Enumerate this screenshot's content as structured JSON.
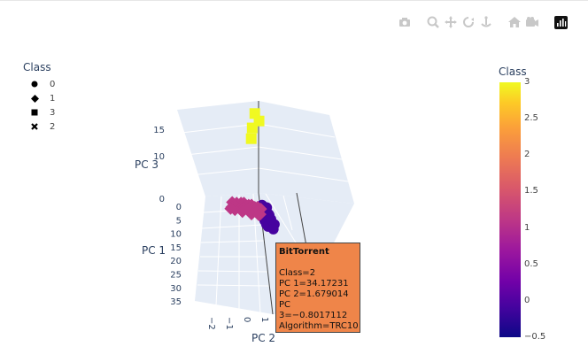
{
  "modebar": {
    "icons": [
      "camera-icon",
      "zoom-icon",
      "pan-icon",
      "orbit-icon",
      "turntable-icon",
      "home-icon",
      "camera-default-icon",
      "plotly-logo-icon"
    ]
  },
  "legend": {
    "title": "Class",
    "items": [
      {
        "label": "0",
        "symbol": "circle"
      },
      {
        "label": "1",
        "symbol": "diamond"
      },
      {
        "label": "3",
        "symbol": "square"
      },
      {
        "label": "2",
        "symbol": "x"
      }
    ]
  },
  "colorbar": {
    "title": "Class",
    "ticks": [
      "3",
      "2.5",
      "2",
      "1.5",
      "1",
      "0.5",
      "0",
      "−0.5"
    ],
    "colors": [
      "#0d0887",
      "#46039f",
      "#7201a8",
      "#9c179e",
      "#bd3786",
      "#d8576b",
      "#ed7953",
      "#fb9f3a",
      "#fdca26",
      "#f0f921"
    ]
  },
  "scene": {
    "axis_titles": {
      "x": "PC 1",
      "y": "PC 2",
      "z": "PC 3"
    },
    "x_ticks": [
      "0",
      "5",
      "10",
      "15",
      "20",
      "25",
      "30",
      "35"
    ],
    "y_ticks": [
      "−2",
      "−1",
      "0",
      "1"
    ],
    "z_ticks": [
      "0",
      "10",
      "15"
    ],
    "grid_color": "#ffffff",
    "plane_color": "#e5ecf6"
  },
  "chart_data": {
    "type": "scatter",
    "title": "",
    "xlabel": "PC 1",
    "ylabel": "PC 2",
    "zlabel": "PC 3",
    "color_range": [
      -0.5,
      3
    ],
    "series": [
      {
        "name": "0",
        "symbol": "circle",
        "color_value": 0,
        "points": [
          [
            2,
            0.2,
            0.1
          ],
          [
            3,
            0.5,
            0.2
          ],
          [
            4,
            0.4,
            0.3
          ],
          [
            5,
            0.3,
            0.1
          ],
          [
            6,
            0.6,
            0.5
          ],
          [
            7,
            0.2,
            0.4
          ],
          [
            8,
            0.5,
            0.6
          ],
          [
            9,
            0.3,
            0.8
          ],
          [
            10,
            0.6,
            1.0
          ],
          [
            11,
            0.4,
            1.2
          ],
          [
            12,
            0.5,
            1.3
          ],
          [
            3,
            0.2,
            -0.2
          ],
          [
            5,
            0.6,
            -0.3
          ],
          [
            7,
            0.7,
            0.0
          ],
          [
            9,
            0.9,
            0.1
          ],
          [
            11,
            0.8,
            0.2
          ]
        ]
      },
      {
        "name": "1",
        "symbol": "diamond",
        "color_value": 1,
        "points": [
          [
            0.5,
            -1.8,
            -0.6
          ],
          [
            1.0,
            -1.5,
            -0.4
          ],
          [
            1.2,
            -1.2,
            -0.2
          ],
          [
            1.5,
            -1.0,
            0.0
          ],
          [
            1.8,
            -0.9,
            -0.3
          ],
          [
            2.0,
            -0.7,
            -0.1
          ],
          [
            2.2,
            -0.5,
            0.1
          ],
          [
            2.5,
            -0.4,
            -0.2
          ],
          [
            2.8,
            -0.3,
            0.0
          ],
          [
            3.0,
            -0.1,
            0.2
          ],
          [
            3.2,
            0.0,
            -0.1
          ],
          [
            3.5,
            0.1,
            0.1
          ],
          [
            1.2,
            -1.6,
            -1.0
          ],
          [
            1.5,
            -1.3,
            -1.2
          ],
          [
            2.0,
            -1.1,
            -0.9
          ],
          [
            2.5,
            -0.8,
            -0.7
          ],
          [
            1.0,
            -1.9,
            -1.4
          ],
          [
            1.8,
            -1.7,
            -1.5
          ],
          [
            3.8,
            -0.2,
            -0.3
          ],
          [
            4.5,
            0.0,
            -0.5
          ],
          [
            4.0,
            -0.6,
            -0.9
          ],
          [
            2.8,
            -1.2,
            -1.2
          ],
          [
            0.6,
            -2.0,
            -2.0
          ],
          [
            5.0,
            -0.1,
            -0.4
          ]
        ]
      },
      {
        "name": "3",
        "symbol": "square",
        "color_value": 3,
        "points": [
          [
            1,
            1.0,
            19.6
          ],
          [
            2,
            1.2,
            18.6
          ],
          [
            0,
            0.6,
            15.8
          ],
          [
            1,
            0.4,
            14.0
          ]
        ]
      },
      {
        "name": "2",
        "symbol": "x",
        "color_value": 2,
        "points": [
          [
            34.17231,
            1.679014,
            -0.8017112
          ]
        ]
      }
    ]
  },
  "tooltip": {
    "title": "BitTorrent",
    "lines": [
      "Class=2",
      "PC 1=34.17231",
      "PC 2=1.679014",
      "PC 3=−0.8017112",
      "Algorithm=TRC10"
    ]
  }
}
